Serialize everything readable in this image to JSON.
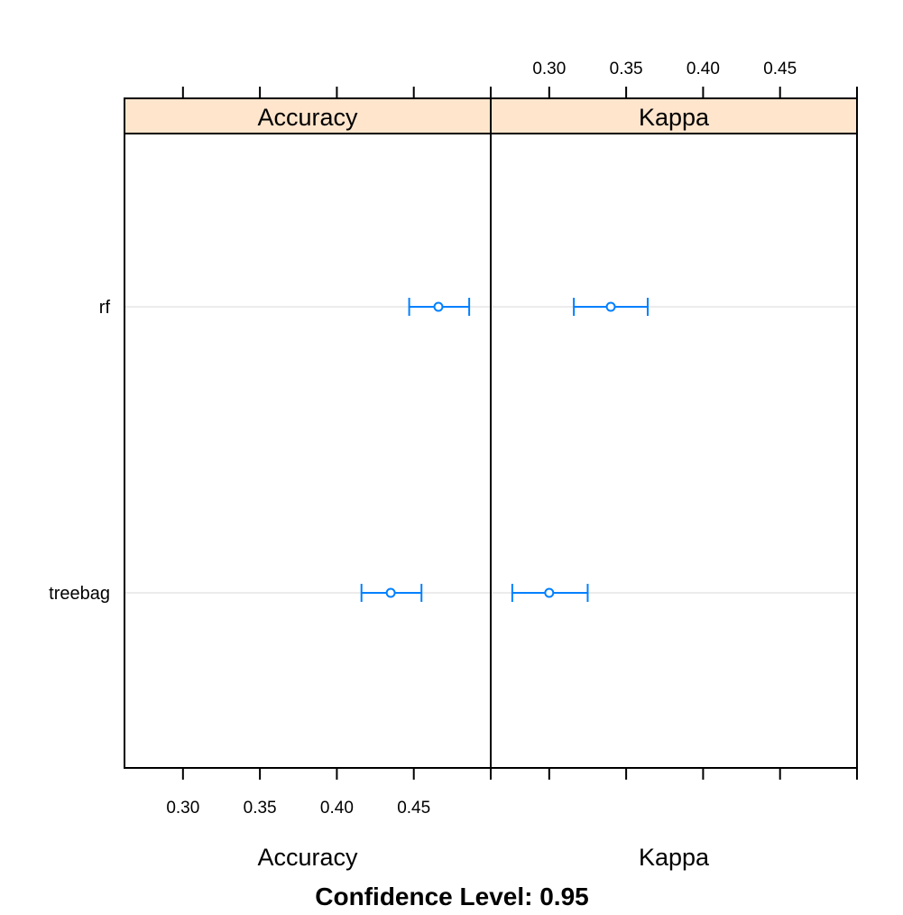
{
  "chart_data": {
    "type": "dotplot",
    "panels": [
      {
        "name": "Accuracy",
        "xlabel": "Accuracy",
        "xlim": [
          0.262,
          0.5
        ],
        "ticks": [
          0.3,
          0.35,
          0.4,
          0.45
        ],
        "tick_labels": [
          "0.30",
          "0.35",
          "0.40",
          "0.45"
        ],
        "tick_side": "bottom",
        "points": [
          {
            "model": "rf",
            "estimate": 0.466,
            "lower": 0.447,
            "upper": 0.486
          },
          {
            "model": "treebag",
            "estimate": 0.435,
            "lower": 0.416,
            "upper": 0.455
          }
        ]
      },
      {
        "name": "Kappa",
        "xlabel": "Kappa",
        "xlim": [
          0.262,
          0.5
        ],
        "ticks": [
          0.3,
          0.35,
          0.4,
          0.45
        ],
        "tick_labels": [
          "0.30",
          "0.35",
          "0.40",
          "0.45"
        ],
        "tick_side": "top",
        "points": [
          {
            "model": "rf",
            "estimate": 0.34,
            "lower": 0.316,
            "upper": 0.364
          },
          {
            "model": "treebag",
            "estimate": 0.3,
            "lower": 0.276,
            "upper": 0.325
          }
        ]
      }
    ],
    "categories": [
      "rf",
      "treebag"
    ],
    "caption": "Confidence Level: 0.95",
    "grid": "horizontal",
    "colors": {
      "strip": "#ffe5cc",
      "series": "#0080ff",
      "grid": "#e6e6e6",
      "frame": "#000000"
    }
  }
}
